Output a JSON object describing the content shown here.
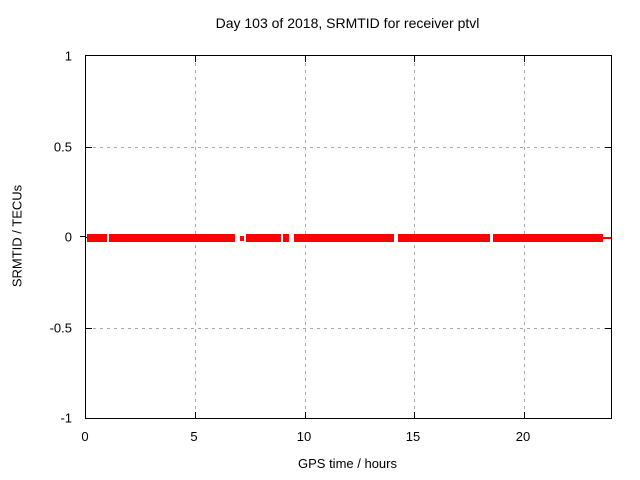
{
  "title": "Day 103 of 2018, SRMTID for receiver ptvl",
  "colors": {
    "series": "#ff0000",
    "grid": "#a8a8a8",
    "axis": "#000000",
    "background": "#ffffff"
  },
  "chart_data": {
    "type": "line",
    "title": "Day 103 of 2018, SRMTID for receiver ptvl",
    "xlabel": "GPS time / hours",
    "ylabel": "SRMTID / TECUs",
    "xlim": [
      0,
      24
    ],
    "ylim": [
      -1,
      1
    ],
    "grid": true,
    "legend": "none",
    "xticks": [
      {
        "value": 0,
        "label": "0"
      },
      {
        "value": 5,
        "label": "5"
      },
      {
        "value": 10,
        "label": "10"
      },
      {
        "value": 15,
        "label": "15"
      },
      {
        "value": 20,
        "label": "20"
      }
    ],
    "yticks": [
      {
        "value": 1,
        "label": "1"
      },
      {
        "value": 0.5,
        "label": "0.5"
      },
      {
        "value": 0,
        "label": "0"
      },
      {
        "value": -0.5,
        "label": "-0.5"
      },
      {
        "value": -1,
        "label": "-1"
      }
    ],
    "series": [
      {
        "name": "SRMTID",
        "color": "#ff0000",
        "y_value": 0,
        "description": "Dense band of near-zero SRMTID values (approx. +/-0.02 TECUs) spanning the day, with short data gaps",
        "segments": [
          {
            "start_h": 0.05,
            "end_h": 0.98,
            "kind": "band"
          },
          {
            "start_h": 1.07,
            "end_h": 6.83,
            "kind": "band"
          },
          {
            "start_h": 7.02,
            "end_h": 7.22,
            "kind": "dash"
          },
          {
            "start_h": 7.32,
            "end_h": 8.93,
            "kind": "band"
          },
          {
            "start_h": 9.01,
            "end_h": 9.27,
            "kind": "band"
          },
          {
            "start_h": 9.49,
            "end_h": 14.09,
            "kind": "band"
          },
          {
            "start_h": 14.25,
            "end_h": 18.48,
            "kind": "band"
          },
          {
            "start_h": 18.61,
            "end_h": 23.62,
            "kind": "band"
          },
          {
            "start_h": 23.62,
            "end_h": 24.0,
            "kind": "thin"
          }
        ]
      }
    ]
  }
}
